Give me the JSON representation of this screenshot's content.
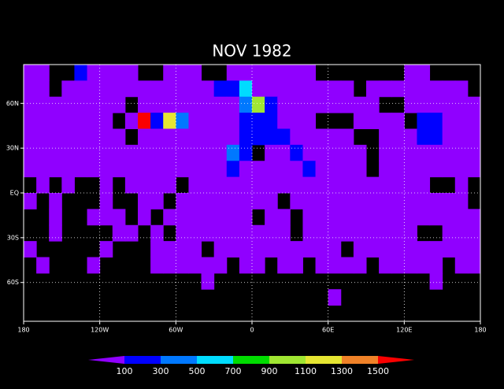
{
  "title": "NOV 1982",
  "map": {
    "lon_lim": [
      -180,
      180
    ],
    "lat_lim": [
      -86,
      86
    ],
    "grid": true,
    "xticks": [
      {
        "value": -180,
        "label": "180"
      },
      {
        "value": -120,
        "label": "120W"
      },
      {
        "value": -60,
        "label": "60W"
      },
      0,
      {
        "value": 60,
        "label": "60E"
      },
      {
        "value": 120,
        "label": "120E"
      },
      {
        "value": 180,
        "label": "180"
      }
    ],
    "yticks": [
      {
        "value": 60,
        "label": "60N"
      },
      {
        "value": 30,
        "label": "30N"
      },
      {
        "value": 0,
        "label": "EQ"
      },
      {
        "value": -30,
        "label": "30S"
      },
      {
        "value": -60,
        "label": "60S"
      }
    ],
    "cells": [
      [
        50,
        50,
        null,
        null,
        200,
        50,
        50,
        50,
        50,
        null,
        null,
        50,
        50,
        50,
        null,
        null,
        50,
        50,
        50,
        50,
        50,
        50,
        50,
        null,
        null,
        null,
        null,
        null,
        null,
        null,
        50,
        50,
        null,
        null,
        null,
        null
      ],
      [
        50,
        50,
        null,
        50,
        50,
        50,
        50,
        50,
        50,
        50,
        50,
        50,
        50,
        50,
        50,
        200,
        200,
        600,
        50,
        50,
        50,
        50,
        50,
        50,
        50,
        50,
        null,
        50,
        50,
        50,
        50,
        50,
        50,
        50,
        50,
        null
      ],
      [
        50,
        50,
        50,
        50,
        50,
        50,
        50,
        50,
        null,
        50,
        50,
        50,
        50,
        50,
        50,
        50,
        50,
        400,
        1000,
        200,
        50,
        50,
        50,
        50,
        50,
        50,
        50,
        50,
        null,
        null,
        50,
        50,
        50,
        50,
        50,
        50
      ],
      [
        50,
        50,
        50,
        50,
        50,
        50,
        50,
        null,
        50,
        1600,
        200,
        1200,
        400,
        50,
        50,
        50,
        50,
        200,
        200,
        200,
        50,
        50,
        50,
        null,
        null,
        null,
        50,
        50,
        50,
        50,
        null,
        200,
        200,
        50,
        50,
        50
      ],
      [
        50,
        50,
        50,
        50,
        50,
        50,
        50,
        50,
        null,
        50,
        50,
        50,
        50,
        50,
        50,
        50,
        50,
        200,
        200,
        200,
        200,
        50,
        50,
        50,
        50,
        50,
        null,
        null,
        50,
        50,
        50,
        200,
        200,
        50,
        50,
        50
      ],
      [
        50,
        50,
        50,
        50,
        50,
        50,
        50,
        50,
        50,
        50,
        50,
        50,
        50,
        50,
        50,
        50,
        400,
        200,
        null,
        50,
        50,
        200,
        50,
        50,
        50,
        50,
        50,
        null,
        50,
        50,
        50,
        50,
        50,
        50,
        50,
        50
      ],
      [
        50,
        50,
        50,
        50,
        50,
        50,
        50,
        50,
        50,
        50,
        50,
        50,
        50,
        50,
        50,
        50,
        200,
        50,
        50,
        50,
        50,
        50,
        200,
        50,
        50,
        50,
        50,
        null,
        50,
        50,
        50,
        50,
        50,
        50,
        50,
        50
      ],
      [
        null,
        50,
        null,
        50,
        null,
        null,
        50,
        null,
        50,
        50,
        50,
        50,
        null,
        50,
        50,
        50,
        50,
        50,
        50,
        50,
        50,
        50,
        50,
        50,
        50,
        50,
        50,
        50,
        50,
        50,
        50,
        50,
        null,
        null,
        50,
        null
      ],
      [
        50,
        null,
        50,
        null,
        null,
        null,
        50,
        null,
        null,
        50,
        50,
        null,
        50,
        50,
        50,
        50,
        50,
        50,
        50,
        50,
        null,
        50,
        50,
        50,
        50,
        50,
        50,
        50,
        50,
        50,
        50,
        50,
        50,
        50,
        50,
        null
      ],
      [
        null,
        null,
        50,
        null,
        null,
        50,
        50,
        50,
        null,
        50,
        null,
        50,
        50,
        50,
        50,
        50,
        50,
        50,
        null,
        50,
        50,
        null,
        50,
        50,
        50,
        50,
        50,
        50,
        50,
        50,
        50,
        50,
        50,
        50,
        50,
        50
      ],
      [
        null,
        null,
        50,
        null,
        null,
        null,
        null,
        50,
        50,
        null,
        50,
        null,
        50,
        50,
        50,
        50,
        50,
        50,
        50,
        50,
        50,
        null,
        50,
        50,
        50,
        50,
        50,
        50,
        50,
        50,
        50,
        null,
        null,
        50,
        50,
        50
      ],
      [
        50,
        null,
        null,
        null,
        null,
        null,
        50,
        null,
        null,
        null,
        50,
        50,
        50,
        50,
        null,
        50,
        50,
        50,
        50,
        50,
        50,
        50,
        50,
        50,
        50,
        null,
        50,
        50,
        50,
        50,
        50,
        50,
        50,
        50,
        50,
        50
      ],
      [
        null,
        50,
        null,
        null,
        null,
        50,
        null,
        null,
        null,
        null,
        50,
        50,
        50,
        50,
        50,
        50,
        null,
        50,
        50,
        null,
        50,
        50,
        null,
        50,
        50,
        50,
        50,
        null,
        50,
        50,
        50,
        50,
        50,
        null,
        50,
        50
      ],
      [
        null,
        null,
        null,
        null,
        null,
        null,
        null,
        null,
        null,
        null,
        null,
        null,
        null,
        null,
        50,
        null,
        null,
        null,
        null,
        null,
        null,
        null,
        null,
        null,
        null,
        null,
        null,
        null,
        null,
        null,
        null,
        null,
        50,
        null,
        null,
        null
      ],
      [
        null,
        null,
        null,
        null,
        null,
        null,
        null,
        null,
        null,
        null,
        null,
        null,
        null,
        null,
        null,
        null,
        null,
        null,
        null,
        null,
        null,
        null,
        null,
        null,
        50,
        null,
        null,
        null,
        null,
        null,
        null,
        null,
        null,
        null,
        null,
        null
      ],
      [
        null,
        null,
        null,
        null,
        null,
        null,
        null,
        null,
        null,
        null,
        null,
        null,
        null,
        null,
        null,
        null,
        null,
        null,
        null,
        null,
        null,
        null,
        null,
        null,
        null,
        null,
        null,
        null,
        null,
        null,
        null,
        null,
        null,
        null,
        null,
        null
      ]
    ]
  },
  "colorbar": {
    "levels": [
      100,
      300,
      500,
      700,
      900,
      1100,
      1300,
      1500
    ],
    "colors": [
      "#9000ff",
      "#0000ff",
      "#0078ff",
      "#00dcff",
      "#00dc00",
      "#a0e632",
      "#e6e632",
      "#f08228",
      "#fa0000"
    ]
  }
}
